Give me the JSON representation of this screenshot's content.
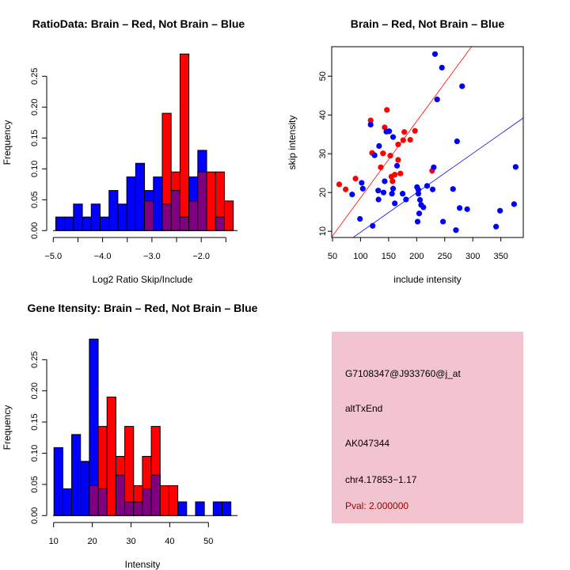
{
  "colors": {
    "red": "#ff0000",
    "blue": "#0000ff",
    "overlap": "#800080",
    "panel": "#f2c4cf",
    "pval": "#a00000"
  },
  "chart_data": [
    {
      "type": "bar",
      "title": "RatioData: Brain – Red, Not Brain – Blue",
      "xlabel": "Log2 Ratio Skip/Include",
      "ylabel": "Frequency",
      "bin_start": -4.95,
      "bin_width": 0.18,
      "xticks": [
        -5.0,
        -4.0,
        -3.0,
        -2.0
      ],
      "xtick_labels": [
        "−5.0",
        "−4.0",
        "−3.0",
        "−2.0"
      ],
      "yticks": [
        0,
        0.05,
        0.1,
        0.15,
        0.2,
        0.25
      ],
      "ytick_labels": [
        "0.00",
        "0.05",
        "0.10",
        "0.15",
        "0.20",
        "0.25"
      ],
      "series": [
        {
          "name": "Not Brain",
          "color": "blue",
          "values": [
            0.022,
            0.022,
            0.043,
            0.022,
            0.043,
            0.022,
            0.065,
            0.043,
            0.087,
            0.109,
            0.065,
            0.087,
            0.043,
            0.065,
            0.022,
            0.087,
            0.13,
            0,
            0.022,
            0
          ]
        },
        {
          "name": "Brain",
          "color": "red",
          "values": [
            0,
            0,
            0,
            0,
            0,
            0,
            0,
            0,
            0,
            0,
            0.048,
            0,
            0.19,
            0.095,
            0.286,
            0.048,
            0.095,
            0.095,
            0.095,
            0.048
          ]
        }
      ]
    },
    {
      "type": "scatter",
      "title": "Brain – Red, Not Brain – Blue",
      "xlabel": "include intensity",
      "ylabel": "skip intensity",
      "xlim": [
        48.6,
        390
      ],
      "ylim": [
        8.4,
        57.6
      ],
      "xticks": [
        50,
        100,
        150,
        200,
        250,
        300,
        350
      ],
      "xtick_labels": [
        "50",
        "100",
        "150",
        "200",
        "250",
        "300",
        "350"
      ],
      "yticks": [
        10,
        20,
        30,
        40,
        50
      ],
      "ytick_labels": [
        "10",
        "20",
        "30",
        "40",
        "50"
      ],
      "series": [
        {
          "name": "Brain",
          "color": "red",
          "fit": {
            "slope": 0.197,
            "intercept": -1.05
          },
          "points": [
            [
              62,
              22.1
            ],
            [
              73.5,
              20.8
            ],
            [
              91,
              23.6
            ],
            [
              118,
              38.6
            ],
            [
              120.6,
              30.2
            ],
            [
              136,
              26.5
            ],
            [
              140,
              30.1
            ],
            [
              143,
              36.8
            ],
            [
              147,
              41.3
            ],
            [
              153,
              29.5
            ],
            [
              155,
              24.1
            ],
            [
              157,
              22.9
            ],
            [
              161,
              24.6
            ],
            [
              167,
              32.4
            ],
            [
              167,
              28.4
            ],
            [
              171,
              24.9
            ],
            [
              176,
              33.5
            ],
            [
              178,
              35.6
            ],
            [
              188.5,
              33.6
            ],
            [
              197,
              35.9
            ],
            [
              227.6,
              25.6
            ]
          ]
        },
        {
          "name": "Not Brain",
          "color": "blue",
          "fit": {
            "slope": 0.1016,
            "intercept": -0.4
          },
          "points": [
            [
              232.7,
              55.7
            ],
            [
              245,
              52.2
            ],
            [
              236.5,
              44.0
            ],
            [
              281,
              47.4
            ],
            [
              118,
              37.5
            ],
            [
              146,
              35.7
            ],
            [
              151,
              35.8
            ],
            [
              158,
              34.3
            ],
            [
              133,
              32.0
            ],
            [
              125,
              29.6
            ],
            [
              165,
              26.9
            ],
            [
              102,
              22.5
            ],
            [
              104,
              21.0
            ],
            [
              85,
              19.5
            ],
            [
              143,
              22.9
            ],
            [
              131.5,
              20.5
            ],
            [
              141,
              20.0
            ],
            [
              132,
              18.2
            ],
            [
              156,
              19.7
            ],
            [
              158,
              21.0
            ],
            [
              161,
              17.2
            ],
            [
              175,
              19.7
            ],
            [
              181,
              18.2
            ],
            [
              200.7,
              21.4
            ],
            [
              203,
              20.7
            ],
            [
              203,
              19.7
            ],
            [
              206,
              18.1
            ],
            [
              208,
              16.8
            ],
            [
              212,
              16.2
            ],
            [
              204.5,
              14.6
            ],
            [
              201.7,
              12.5
            ],
            [
              218.6,
              21.7
            ],
            [
              228.5,
              20.8
            ],
            [
              230.4,
              26.5
            ],
            [
              272,
              33.2
            ],
            [
              264.8,
              20.9
            ],
            [
              276.6,
              16.0
            ],
            [
              290,
              15.7
            ],
            [
              247,
              12.5
            ],
            [
              270,
              10.3
            ],
            [
              341.5,
              11.2
            ],
            [
              348.6,
              15.3
            ],
            [
              373.6,
              17.0
            ],
            [
              376.4,
              26.6
            ],
            [
              99,
              13.2
            ],
            [
              121.6,
              11.4
            ]
          ]
        }
      ]
    },
    {
      "type": "bar",
      "title": "Gene Itensity: Brain – Red, Not Brain – Blue",
      "xlabel": "Intensity",
      "ylabel": "Frequency",
      "bin_start": 10.1,
      "bin_width": 2.285,
      "xticks": [
        10,
        20,
        30,
        40,
        50
      ],
      "xtick_labels": [
        "10",
        "20",
        "30",
        "40",
        "50"
      ],
      "yticks": [
        0,
        0.05,
        0.1,
        0.15,
        0.2,
        0.25
      ],
      "ytick_labels": [
        "0.00",
        "0.05",
        "0.10",
        "0.15",
        "0.20",
        "0.25"
      ],
      "series": [
        {
          "name": "Not Brain",
          "color": "blue",
          "values": [
            0.109,
            0.043,
            0.13,
            0.087,
            0.283,
            0.043,
            0,
            0.065,
            0.022,
            0.022,
            0.043,
            0.065,
            0,
            0,
            0.022,
            0,
            0.022,
            0,
            0.022,
            0.022
          ]
        },
        {
          "name": "Brain",
          "color": "red",
          "values": [
            0,
            0,
            0,
            0,
            0.048,
            0.143,
            0.19,
            0.095,
            0.143,
            0.048,
            0.095,
            0.143,
            0.048,
            0.048,
            0,
            0,
            0,
            0,
            0,
            0
          ]
        }
      ]
    }
  ],
  "info_panel": {
    "probe_id": "G7108347@J933760@j_at",
    "event_type": "altTxEnd",
    "accession": "AK047344",
    "location": "chr4.17853−1.17",
    "pval": "Pval: 2.000000"
  }
}
